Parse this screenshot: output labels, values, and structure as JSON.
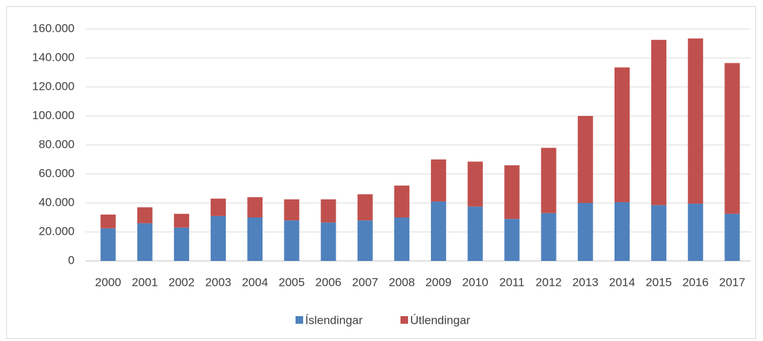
{
  "chart_data": {
    "type": "stacked_bar",
    "categories": [
      "2000",
      "2001",
      "2002",
      "2003",
      "2004",
      "2005",
      "2006",
      "2007",
      "2008",
      "2009",
      "2010",
      "2011",
      "2012",
      "2013",
      "2014",
      "2015",
      "2016",
      "2017"
    ],
    "series": [
      {
        "name": "Íslendingar",
        "color": "#4f81bd",
        "values": [
          22500,
          26000,
          23000,
          31000,
          30000,
          28000,
          26500,
          28000,
          30000,
          41000,
          37500,
          29000,
          33000,
          40000,
          40500,
          38500,
          39500,
          32500
        ]
      },
      {
        "name": "Útlendingar",
        "color": "#c0504d",
        "values": [
          9500,
          11000,
          9500,
          12000,
          14000,
          14500,
          16000,
          18000,
          22000,
          29000,
          31000,
          37000,
          45000,
          60000,
          93000,
          114000,
          114000,
          104000
        ]
      }
    ],
    "ylim": [
      0,
      160000
    ],
    "yticks": [
      0,
      {
        "value": 20000,
        "label": "20.000"
      },
      {
        "value": 40000,
        "label": "40.000"
      },
      {
        "value": 60000,
        "label": "60.000"
      },
      {
        "value": 80000,
        "label": "80.000"
      },
      {
        "value": 100000,
        "label": "100.000"
      },
      {
        "value": 120000,
        "label": "120.000"
      },
      {
        "value": 140000,
        "label": "140.000"
      },
      {
        "value": 160000,
        "label": "160.000"
      }
    ],
    "grid": true,
    "legend": "bottom"
  }
}
